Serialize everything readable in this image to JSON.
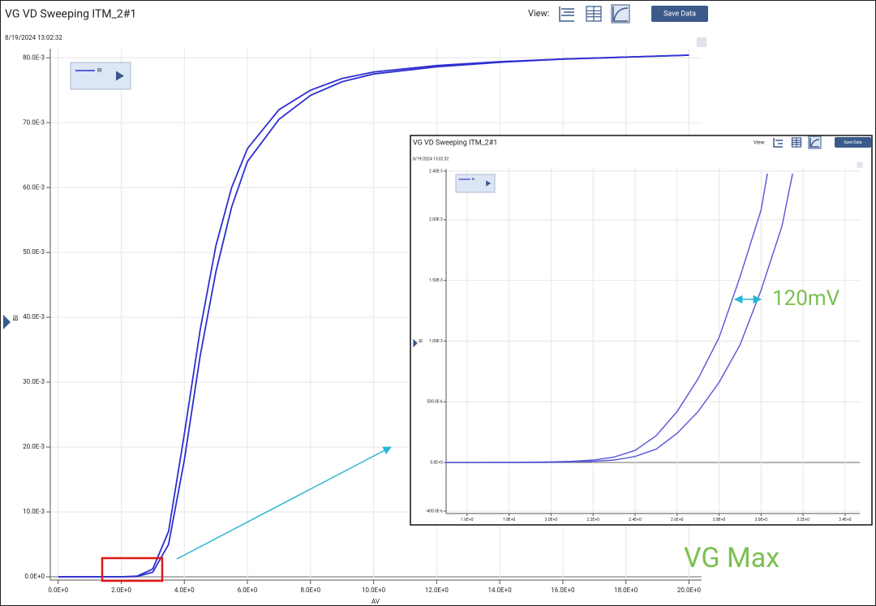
{
  "chart_data": [
    {
      "type": "line",
      "title": "VG VD Sweeping ITM_2#1",
      "timestamp": "8/19/2024 13:02:32",
      "view_label": "View:",
      "button": "Save Data",
      "x_label": "AV",
      "y_label": "BI",
      "grid": true,
      "annotations": [
        "VG Max"
      ],
      "xlim": [
        -0.25,
        20.4
      ],
      "xticks": [
        {
          "value": 0,
          "label": "0.0E+0"
        },
        {
          "value": 2,
          "label": "2.0E+0"
        },
        {
          "value": 4,
          "label": "4.0E+0"
        },
        {
          "value": 6,
          "label": "6.0E+0"
        },
        {
          "value": 8,
          "label": "8.0E+0"
        },
        {
          "value": 10,
          "label": "10.0E+0"
        },
        {
          "value": 12,
          "label": "12.0E+0"
        },
        {
          "value": 14,
          "label": "14.0E+0"
        },
        {
          "value": 16,
          "label": "16.0E+0"
        },
        {
          "value": 18,
          "label": "18.0E+0"
        },
        {
          "value": 20,
          "label": "20.0E+0"
        }
      ],
      "ylim": [
        -0.0005,
        0.0814
      ],
      "yticks": [
        {
          "value": 0,
          "label": "0.0E+0"
        },
        {
          "value": 0.01,
          "label": "10.0E-3"
        },
        {
          "value": 0.02,
          "label": "20.0E-3"
        },
        {
          "value": 0.03,
          "label": "30.0E-3"
        },
        {
          "value": 0.04,
          "label": "40.0E-3"
        },
        {
          "value": 0.05,
          "label": "50.0E-3"
        },
        {
          "value": 0.06,
          "label": "60.0E-3"
        },
        {
          "value": 0.07,
          "label": "70.0E-3"
        },
        {
          "value": 0.08,
          "label": "80.0E-3"
        }
      ],
      "series": [
        {
          "name": "BI",
          "color": "#2f2fd0",
          "x": [
            0,
            1,
            2,
            2.5,
            3,
            3.5,
            4,
            4.5,
            5,
            5.5,
            6,
            7,
            8,
            9,
            10,
            12,
            14,
            16,
            18,
            20
          ],
          "values": [
            0,
            0,
            0,
            0.0001,
            0.0012,
            0.007,
            0.022,
            0.038,
            0.051,
            0.06,
            0.066,
            0.072,
            0.075,
            0.0768,
            0.0778,
            0.0788,
            0.0794,
            0.0798,
            0.0801,
            0.0804
          ]
        },
        {
          "color": "#2f2fd0",
          "x": [
            0,
            1,
            2,
            2.5,
            3,
            3.5,
            4,
            4.5,
            5,
            5.5,
            6,
            7,
            8,
            9,
            10,
            12,
            14,
            16,
            18,
            20
          ],
          "values": [
            0,
            0,
            0,
            5e-05,
            0.0007,
            0.005,
            0.018,
            0.034,
            0.047,
            0.057,
            0.064,
            0.0705,
            0.0742,
            0.0763,
            0.0775,
            0.0786,
            0.0793,
            0.0798,
            0.0801,
            0.0804
          ]
        }
      ]
    },
    {
      "type": "line",
      "title": "VG VD Sweeping ITM_2#1",
      "timestamp": "8/19/2024 13:02:32",
      "view_label": "View:",
      "button": "Save Data",
      "y_label": "BI",
      "grid": true,
      "annotations": [
        "120mV"
      ],
      "xlim": [
        1.5,
        3.47
      ],
      "xticks": [
        {
          "value": 1.6,
          "label": "1.6E+0"
        },
        {
          "value": 1.8,
          "label": "1.8E+0"
        },
        {
          "value": 2.0,
          "label": "2.0E+0"
        },
        {
          "value": 2.2,
          "label": "2.2E+0"
        },
        {
          "value": 2.4,
          "label": "2.4E+0"
        },
        {
          "value": 2.6,
          "label": "2.6E+0"
        },
        {
          "value": 2.8,
          "label": "2.8E+0"
        },
        {
          "value": 3.0,
          "label": "3.0E+0"
        },
        {
          "value": 3.2,
          "label": "3.2E+0"
        },
        {
          "value": 3.4,
          "label": "3.4E+0"
        }
      ],
      "ylim": [
        -0.00042,
        0.00242
      ],
      "yticks": [
        {
          "value": -0.0004,
          "label": "-400.0E-6"
        },
        {
          "value": 0,
          "label": "0.0E+0"
        },
        {
          "value": 0.0005,
          "label": "500.0E-6"
        },
        {
          "value": 0.001,
          "label": "1.00E-3"
        },
        {
          "value": 0.0015,
          "label": "1.50E-3"
        },
        {
          "value": 0.002,
          "label": "2.00E-3"
        },
        {
          "value": 0.0024,
          "label": "2.40E-3"
        }
      ],
      "series": [
        {
          "name": "BI",
          "color": "#5858d8",
          "x": [
            1.5,
            1.8,
            2.0,
            2.1,
            2.2,
            2.3,
            2.4,
            2.5,
            2.6,
            2.7,
            2.8,
            2.9,
            3.0,
            3.03
          ],
          "values": [
            0,
            1e-06,
            5e-06,
            1e-05,
            2e-05,
            4.5e-05,
            0.0001,
            0.00022,
            0.00042,
            0.00069,
            0.00103,
            0.00153,
            0.00208,
            0.00238
          ]
        },
        {
          "color": "#5858d8",
          "x": [
            1.5,
            1.8,
            2.0,
            2.2,
            2.3,
            2.4,
            2.5,
            2.6,
            2.7,
            2.8,
            2.9,
            3.0,
            3.1,
            3.15
          ],
          "values": [
            0,
            0,
            2e-06,
            1e-05,
            2e-05,
            5e-05,
            0.00011,
            0.00024,
            0.00042,
            0.00066,
            0.00097,
            0.00142,
            0.00195,
            0.00238
          ]
        }
      ]
    }
  ]
}
